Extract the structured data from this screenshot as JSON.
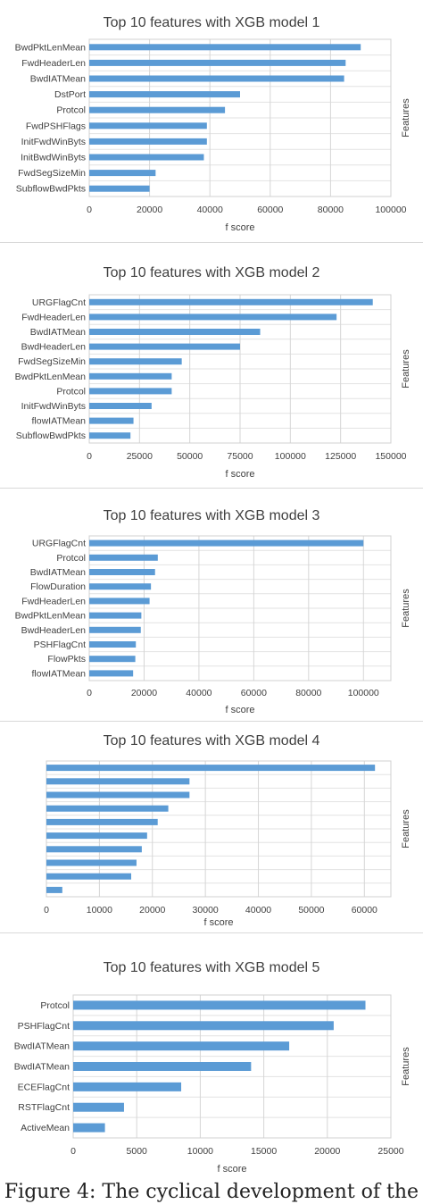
{
  "chart_data": [
    {
      "type": "bar",
      "title": "Top 10 features with XGB model 1",
      "xlabel": "f score",
      "ylabel": "Features",
      "xlim": [
        0,
        100000
      ],
      "xticks": [
        "0",
        "20000",
        "40000",
        "60000",
        "80000",
        "100000"
      ],
      "categories": [
        "BwdPktLenMean",
        "FwdHeaderLen",
        "BwdIATMean",
        "DstPort",
        "Protcol",
        "FwdPSHFlags",
        "InitFwdWinByts",
        "InitBwdWinByts",
        "FwdSegSizeMin",
        "SubflowBwdPkts"
      ],
      "values": [
        90000,
        85000,
        84500,
        50000,
        45000,
        39000,
        39000,
        38000,
        22000,
        20000
      ],
      "color": "#5b9bd5",
      "grid": true
    },
    {
      "type": "bar",
      "title": "Top 10 features with XGB model 2",
      "xlabel": "f score",
      "ylabel": "Features",
      "xlim": [
        0,
        150000
      ],
      "xticks": [
        "0",
        "25000",
        "50000",
        "75000",
        "100000",
        "125000",
        "150000"
      ],
      "categories": [
        "URGFlagCnt",
        "FwdHeaderLen",
        "BwdIATMean",
        "BwdHeaderLen",
        "FwdSegSizeMin",
        "BwdPktLenMean",
        "Protcol",
        "InitFwdWinByts",
        "flowIATMean",
        "SubflowBwdPkts"
      ],
      "values": [
        141000,
        123000,
        85000,
        75000,
        46000,
        41000,
        41000,
        31000,
        22000,
        20500
      ],
      "color": "#5b9bd5",
      "grid": true
    },
    {
      "type": "bar",
      "title": "Top 10 features with XGB model 3",
      "xlabel": "f score",
      "ylabel": "Features",
      "xlim": [
        0,
        110000
      ],
      "xticks": [
        "0",
        "20000",
        "40000",
        "60000",
        "80000",
        "100000"
      ],
      "categories": [
        "URGFlagCnt",
        "Protcol",
        "BwdIATMean",
        "FlowDuration",
        "FwdHeaderLen",
        "BwdPktLenMean",
        "BwdHeaderLen",
        "PSHFlagCnt",
        "FlowPkts",
        "flowIATMean"
      ],
      "values": [
        100000,
        25000,
        24000,
        22500,
        22000,
        19000,
        18800,
        17000,
        16800,
        16000
      ],
      "color": "#5b9bd5",
      "grid": true
    },
    {
      "type": "bar",
      "title": "Top 10 features with XGB model 4",
      "xlabel": "f score",
      "ylabel": "Features",
      "xlim": [
        0,
        65000
      ],
      "xticks": [
        "0",
        "10000",
        "20000",
        "30000",
        "40000",
        "50000",
        "60000"
      ],
      "categories": [
        "",
        "",
        "",
        "",
        "",
        "",
        "",
        "",
        "",
        ""
      ],
      "values": [
        62000,
        27000,
        27000,
        23000,
        21000,
        19000,
        18000,
        17000,
        16000,
        3000
      ],
      "color": "#5b9bd5",
      "grid": true
    },
    {
      "type": "bar",
      "title": "Top 10 features with XGB model 5",
      "xlabel": "f score",
      "ylabel": "Features",
      "xlim": [
        0,
        25000
      ],
      "xticks": [
        "0",
        "5000",
        "10000",
        "15000",
        "20000",
        "25000"
      ],
      "categories": [
        "Protcol",
        "PSHFlagCnt",
        "BwdIATMean",
        "BwdIATMean",
        "ECEFlagCnt",
        "RSTFlagCnt",
        "ActiveMean"
      ],
      "values": [
        23000,
        20500,
        17000,
        14000,
        8500,
        4000,
        2500
      ],
      "color": "#5b9bd5",
      "grid": true
    }
  ],
  "caption": "Figure 4: The cyclical development of the"
}
